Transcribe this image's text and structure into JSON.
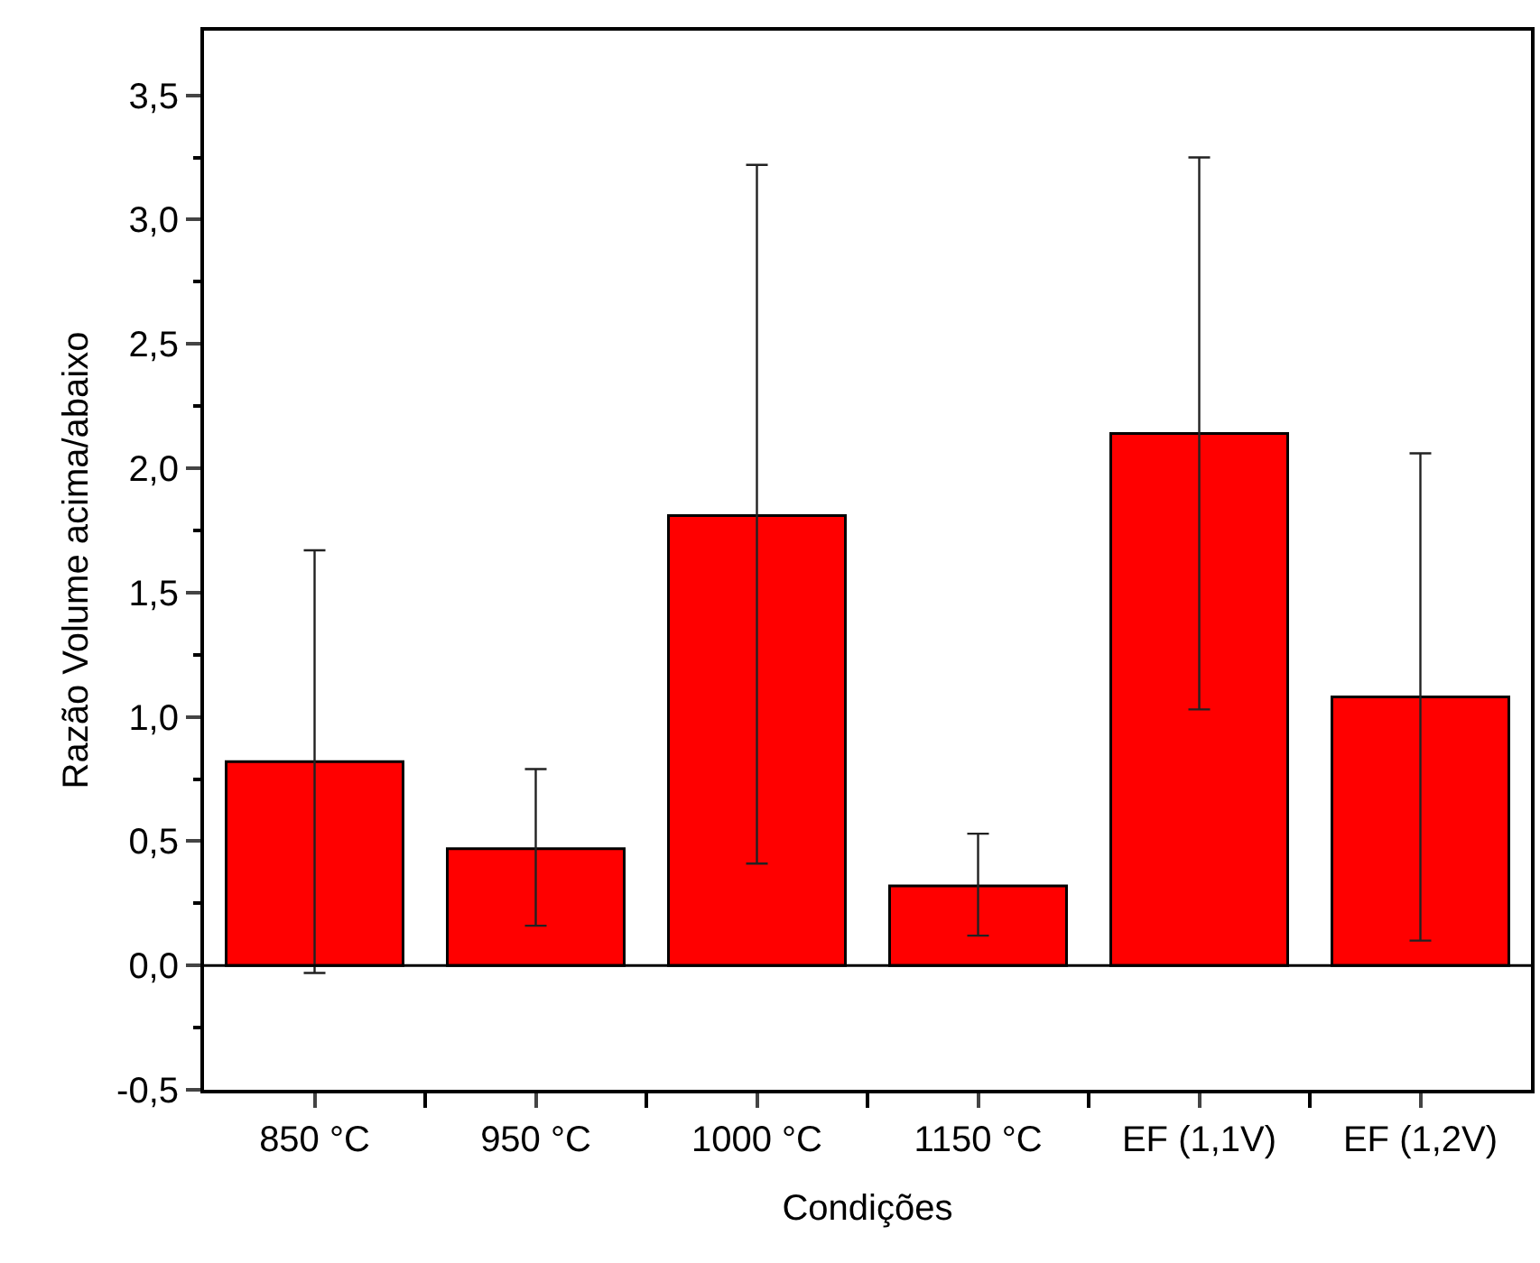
{
  "chart_data": {
    "type": "bar",
    "xlabel": "Condições",
    "ylabel": "Razão Volume acima/abaixo",
    "categories": [
      "850 °C",
      "950 °C",
      "1000 °C",
      "1150 °C",
      "EF (1,1V)",
      "EF (1,2V)"
    ],
    "values": [
      0.82,
      0.47,
      1.81,
      0.32,
      2.14,
      1.08
    ],
    "errors": [
      [
        -0.03,
        1.67
      ],
      [
        0.16,
        0.79
      ],
      [
        0.41,
        3.22
      ],
      [
        0.12,
        0.53
      ],
      [
        1.03,
        3.25
      ],
      [
        0.1,
        2.06
      ]
    ],
    "color": "#ff0000",
    "ylim": [
      -0.5,
      3.76
    ],
    "yticks": [
      {
        "value": -0.5,
        "label": "-0,5"
      },
      {
        "value": 0,
        "label": "0,0"
      },
      {
        "value": 0.5,
        "label": "0,5"
      },
      {
        "value": 1,
        "label": "1,0"
      },
      {
        "value": 1.5,
        "label": "1,5"
      },
      {
        "value": 2,
        "label": "2,0"
      },
      {
        "value": 2.5,
        "label": "2,5"
      },
      {
        "value": 3,
        "label": "3,0"
      },
      {
        "value": 3.5,
        "label": "3,5"
      }
    ],
    "ref_lines": [
      {
        "axis": "y",
        "value": 0,
        "color": "#000000",
        "line_style": "solid"
      }
    ],
    "legend": false
  }
}
